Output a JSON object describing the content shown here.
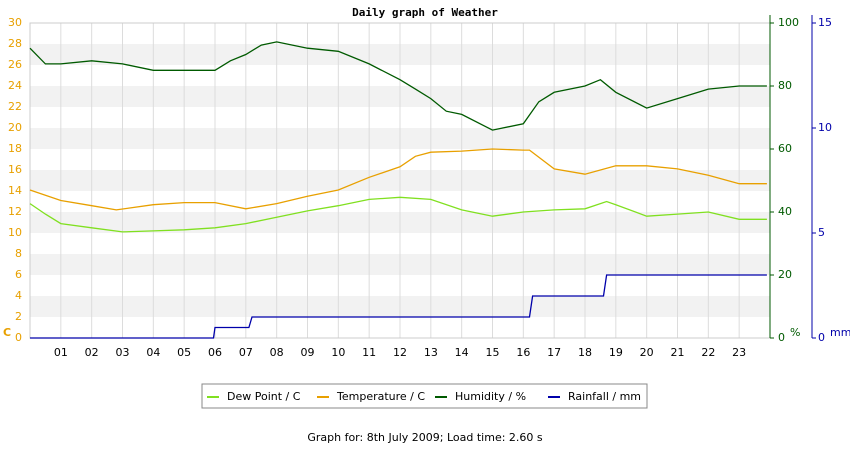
{
  "chart_data": {
    "type": "line",
    "title": "Daily graph of Weather",
    "footer": "Graph for: 8th July 2009; Load time: 2.60 s",
    "xlim": [
      0,
      24
    ],
    "xticks": [
      {
        "value": 1,
        "label": "01"
      },
      {
        "value": 2,
        "label": "02"
      },
      {
        "value": 3,
        "label": "03"
      },
      {
        "value": 4,
        "label": "04"
      },
      {
        "value": 5,
        "label": "05"
      },
      {
        "value": 6,
        "label": "06"
      },
      {
        "value": 7,
        "label": "07"
      },
      {
        "value": 8,
        "label": "08"
      },
      {
        "value": 9,
        "label": "09"
      },
      10,
      11,
      12,
      13,
      14,
      15,
      16,
      17,
      18,
      19,
      20,
      21,
      22,
      23
    ],
    "ylim": [
      0,
      30
    ],
    "yticks": [
      0,
      2,
      4,
      6,
      8,
      10,
      12,
      14,
      16,
      18,
      20,
      22,
      24,
      26,
      28,
      30
    ],
    "y_label": "C",
    "y_color": "#e8a000",
    "y2lim": [
      0,
      100
    ],
    "y2ticks": [
      0,
      20,
      40,
      60,
      80,
      100
    ],
    "y2_label": "%",
    "y2_color": "#005a00",
    "y3lim": [
      0,
      15
    ],
    "y3ticks": [
      0,
      5,
      10,
      15
    ],
    "y3_label": "mm",
    "y3_color": "#0000aa",
    "grid": true,
    "banded": true,
    "series": [
      {
        "name": "Dew Point / C",
        "color": "#80e020",
        "axis": "y",
        "x": [
          0,
          0.5,
          1,
          2,
          3,
          4,
          5,
          6,
          7,
          8,
          9,
          10,
          11,
          12,
          13,
          14,
          15,
          16,
          17,
          18,
          18.7,
          19,
          20,
          21,
          22,
          23,
          23.9
        ],
        "values": [
          12.8,
          11.8,
          10.9,
          10.5,
          10.1,
          10.2,
          10.3,
          10.5,
          10.9,
          11.5,
          12.1,
          12.6,
          13.2,
          13.4,
          13.2,
          12.2,
          11.6,
          12.0,
          12.2,
          12.3,
          13.0,
          12.7,
          11.6,
          11.8,
          12.0,
          11.3,
          11.3
        ]
      },
      {
        "name": "Temperature / C",
        "color": "#e8a000",
        "axis": "y",
        "x": [
          0,
          1,
          2,
          2.8,
          4,
          5,
          6,
          7,
          8,
          9,
          10,
          11,
          12,
          12.5,
          13,
          14,
          15,
          16,
          16.2,
          17,
          18,
          19,
          20,
          21,
          22,
          23,
          23.9
        ],
        "values": [
          14.1,
          13.1,
          12.6,
          12.2,
          12.7,
          12.9,
          12.9,
          12.3,
          12.8,
          13.5,
          14.1,
          15.3,
          16.3,
          17.3,
          17.7,
          17.8,
          18.0,
          17.9,
          17.9,
          16.1,
          15.6,
          16.4,
          16.4,
          16.1,
          15.5,
          14.7,
          14.7
        ]
      },
      {
        "name": "Humidity / %",
        "color": "#005a00",
        "axis": "y2",
        "x": [
          0,
          0.5,
          1,
          2,
          3,
          4,
          5,
          6,
          6.5,
          7,
          7.5,
          8,
          9,
          10,
          11,
          12,
          12.5,
          13,
          13.5,
          14,
          14.8,
          15,
          16,
          16.5,
          17,
          18,
          18.5,
          19,
          20,
          21,
          22,
          23,
          23.9
        ],
        "values": [
          92,
          87,
          87,
          88,
          87,
          85,
          85,
          85,
          88,
          90,
          93,
          94,
          92,
          91,
          87,
          82,
          79,
          76,
          72,
          71,
          67,
          66,
          68,
          75,
          78,
          80,
          82,
          78,
          73,
          76,
          79,
          80,
          80
        ]
      },
      {
        "name": "Rainfall / mm",
        "color": "#0000aa",
        "axis": "y3",
        "x": [
          0,
          5.95,
          6,
          7.1,
          7.2,
          16.2,
          16.3,
          18.6,
          18.7,
          23.9
        ],
        "values": [
          0,
          0,
          0.5,
          0.5,
          1,
          1,
          2,
          2,
          3,
          3
        ]
      }
    ]
  }
}
